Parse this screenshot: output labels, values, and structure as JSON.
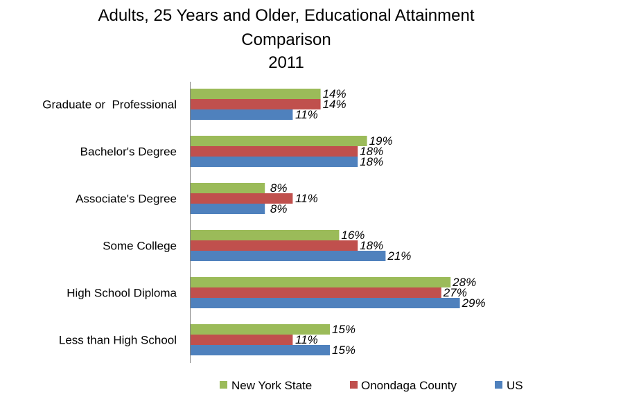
{
  "chart_data": {
    "type": "bar",
    "orientation": "horizontal",
    "title_lines": [
      "Adults, 25 Years and Older, Educational Attainment",
      "Comparison",
      "2011"
    ],
    "categories": [
      "Graduate or  Professional",
      "Bachelor's Degree",
      "Associate's Degree",
      "Some College",
      "High School Diploma",
      "Less than High School"
    ],
    "series": [
      {
        "name": "New York State",
        "color": "#9BBB59",
        "values": [
          14,
          19,
          8,
          16,
          28,
          15
        ],
        "labels": [
          "14%",
          "19%",
          "8%",
          "16%",
          "28%",
          "15%"
        ]
      },
      {
        "name": "Onondaga County",
        "color": "#C0504D",
        "values": [
          14,
          18,
          11,
          18,
          27,
          11
        ],
        "labels": [
          "14%",
          "18%",
          "11%",
          "18%",
          "27%",
          "11%"
        ]
      },
      {
        "name": "US",
        "color": "#4F81BD",
        "values": [
          11,
          18,
          8,
          21,
          29,
          15
        ],
        "labels": [
          "11%",
          "18%",
          "8%",
          "21%",
          "29%",
          "15%"
        ]
      }
    ],
    "xlim": [
      0,
      45
    ],
    "grid": false,
    "legend_position": "bottom"
  }
}
